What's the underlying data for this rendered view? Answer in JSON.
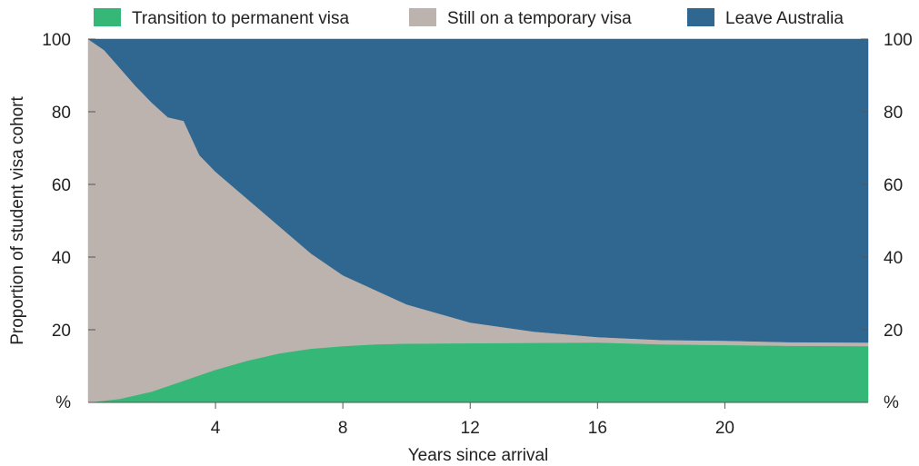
{
  "chart_data": {
    "type": "area",
    "stacked": true,
    "xlabel": "Years since arrival",
    "ylabel": "Proportion of student visa cohort",
    "y_unit": "%",
    "xlim": [
      0,
      24.5
    ],
    "ylim": [
      0,
      100
    ],
    "x_ticks": [
      4,
      8,
      12,
      16,
      20
    ],
    "y_ticks": [
      20,
      40,
      60,
      80,
      100
    ],
    "legend_position": "top",
    "series": [
      {
        "name": "Transition to permanent visa",
        "color": "#35b877",
        "x": [
          0,
          0.5,
          1,
          1.5,
          2,
          2.5,
          3,
          3.5,
          4,
          5,
          6,
          7,
          8,
          9,
          10,
          12,
          14,
          16,
          18,
          20,
          22,
          24.5
        ],
        "values": [
          0,
          0.5,
          1,
          2,
          3,
          4.5,
          6,
          7.5,
          9,
          11.5,
          13.5,
          14.8,
          15.5,
          16,
          16.2,
          16.3,
          16.4,
          16.5,
          16,
          15.8,
          15.6,
          15.5
        ]
      },
      {
        "name": "Still on a temporary visa",
        "color": "#bdb3ae",
        "x": [
          0,
          0.5,
          1,
          1.5,
          2,
          2.5,
          3,
          3.5,
          4,
          5,
          6,
          7,
          8,
          9,
          10,
          12,
          14,
          16,
          18,
          20,
          22,
          24.5
        ],
        "values": [
          100,
          96.5,
          91,
          85,
          79.5,
          74,
          71.5,
          60.5,
          54.5,
          44.5,
          35,
          26.2,
          19.5,
          15,
          10.8,
          5.7,
          3.1,
          1.5,
          1.2,
          1.2,
          1.0,
          1.0
        ]
      },
      {
        "name": "Leave Australia",
        "color": "#2f6790",
        "x": [
          0,
          0.5,
          1,
          1.5,
          2,
          2.5,
          3,
          3.5,
          4,
          5,
          6,
          7,
          8,
          9,
          10,
          12,
          14,
          16,
          18,
          20,
          22,
          24.5
        ],
        "values": [
          0,
          3,
          8,
          13,
          17.5,
          21.5,
          22.5,
          32,
          36.5,
          44,
          51.5,
          59,
          65,
          69,
          73,
          78,
          80.5,
          82,
          82.8,
          83,
          83.4,
          83.5
        ]
      }
    ]
  }
}
